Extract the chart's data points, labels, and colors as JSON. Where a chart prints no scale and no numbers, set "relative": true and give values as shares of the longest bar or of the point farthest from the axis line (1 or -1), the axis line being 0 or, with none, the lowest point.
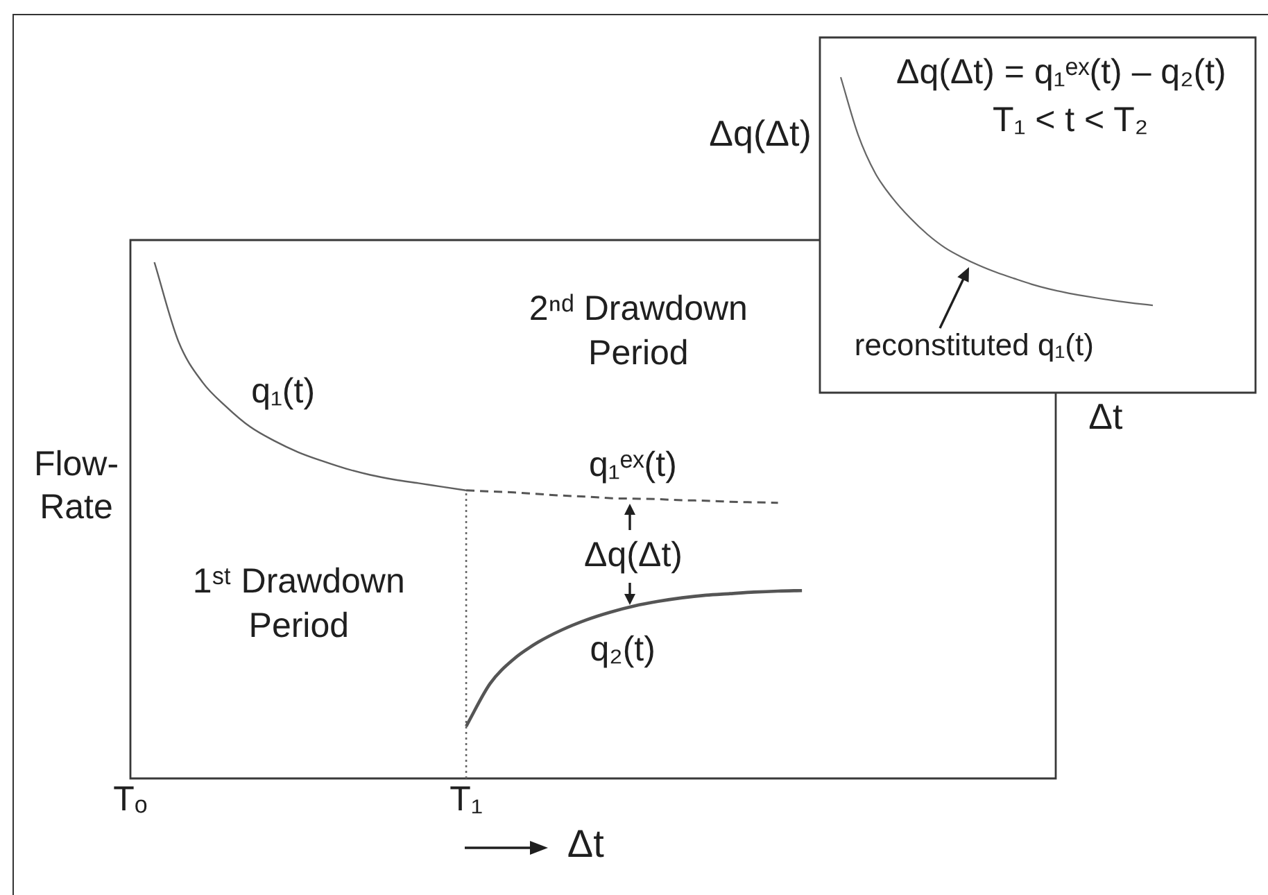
{
  "chart_data": [
    {
      "type": "line",
      "relative": true,
      "xlabel": "Δt",
      "ylabel": "Flow-\nRate",
      "categories": [
        "Tₒ",
        null,
        null,
        null,
        null,
        null,
        null,
        null,
        null,
        null,
        null,
        null,
        null,
        null,
        "T₁",
        null,
        null,
        null,
        null,
        null,
        null,
        null,
        null,
        null,
        null,
        null,
        null,
        null,
        null,
        null,
        null,
        null,
        null,
        null,
        null,
        null,
        null,
        null,
        null
      ],
      "series": [
        {
          "name": "q₁(t)",
          "color": "#5f5f5f",
          "values": [
            null,
            1,
            0.847,
            0.768,
            0.72,
            0.681,
            0.654,
            0.632,
            0.615,
            0.6,
            0.588,
            0.579,
            0.572,
            0.565,
            0.558,
            null,
            null,
            null,
            null,
            null,
            null,
            null,
            null,
            null,
            null,
            null,
            null,
            null,
            null,
            null,
            null,
            null,
            null,
            null,
            null,
            null,
            null,
            null,
            null
          ]
        },
        {
          "name": "q₁ᵉˣ(t)",
          "color": "#555555",
          "line_style": "dashed",
          "values": [
            null,
            null,
            null,
            null,
            null,
            null,
            null,
            null,
            null,
            null,
            null,
            null,
            null,
            null,
            0.558,
            0.556,
            0.554,
            0.551,
            0.548,
            0.546,
            0.543,
            0.542,
            0.541,
            0.539,
            0.538,
            0.536,
            0.535,
            0.534,
            null,
            null,
            null,
            null,
            null,
            null,
            null,
            null,
            null,
            null,
            null
          ]
        },
        {
          "name": "q₂(t)",
          "color": "#555555",
          "values": [
            null,
            null,
            null,
            null,
            null,
            null,
            null,
            null,
            null,
            null,
            null,
            null,
            null,
            null,
            0.101,
            0.184,
            0.232,
            0.264,
            0.288,
            0.307,
            0.322,
            0.334,
            0.343,
            0.35,
            0.355,
            0.358,
            0.361,
            0.363,
            0.364,
            null,
            null,
            null,
            null,
            null,
            null,
            null,
            null,
            null,
            null
          ]
        }
      ],
      "ref_lines": [
        {
          "axis": "x",
          "value": "T₁",
          "line_style": "dotted",
          "color": "#666666"
        }
      ],
      "annotations": [
        "2ⁿᵈ Drawdown\nPeriod",
        "1ˢᵗ Drawdown\nPeriod",
        "Δq(Δt)"
      ]
    },
    {
      "type": "line",
      "relative": true,
      "title": "Δq(Δt) = q₁ᵉˣ(t) – q₂(t)",
      "subtitle": "T₁ < t < T₂",
      "xlabel": "Δt",
      "ylabel": "Δq(Δt)",
      "categories": [
        null,
        null,
        null,
        null,
        null,
        null,
        null,
        null,
        null,
        null,
        null,
        null,
        null,
        null,
        null,
        null,
        null,
        null,
        null
      ],
      "series": [
        {
          "color": "#666666",
          "values": [
            1,
            0.818,
            0.695,
            0.616,
            0.554,
            0.502,
            0.46,
            0.429,
            0.403,
            0.381,
            0.362,
            0.344,
            0.329,
            0.317,
            0.307,
            0.298,
            0.29,
            0.283,
            0.277
          ]
        }
      ],
      "annotations": [
        "reconstituted q₁(t)"
      ]
    }
  ]
}
